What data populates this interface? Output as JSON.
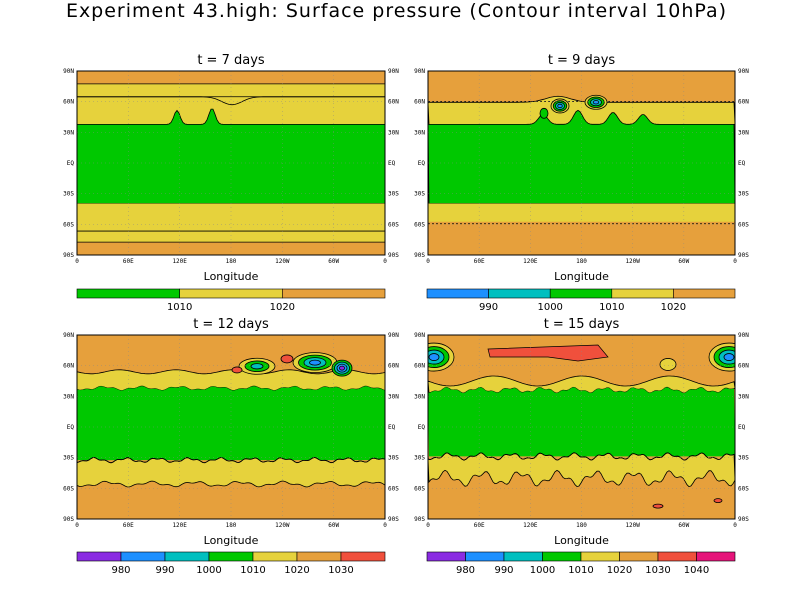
{
  "title": "Experiment 43.high: Surface pressure (Contour interval 10hPa)",
  "colors": {
    "c970": "#8a2be2",
    "c980": "#1e90ff",
    "c990": "#00bfbf",
    "c1000": "#00c800",
    "c1010": "#e6d23c",
    "c1020": "#e6a03c",
    "c1030": "#f0503c",
    "c1040": "#e6147a"
  },
  "chart_data": [
    {
      "type": "contour",
      "panel": "t7",
      "title": "t = 7 days",
      "xlabel": "Longitude",
      "xticks": [
        "0",
        "60E",
        "120E",
        "180",
        "120W",
        "60W",
        "0"
      ],
      "yticks_left": [
        "90N",
        "60N",
        "30N",
        "EQ",
        "30S",
        "60S",
        "90S"
      ],
      "yticks_right": [
        "90N",
        "60N",
        "30N",
        "EQ",
        "30S",
        "60S",
        "90S"
      ],
      "ylim": [
        -90,
        90
      ],
      "colorbar": {
        "colors": [
          "#00c800",
          "#e6d23c",
          "#e6a03c"
        ],
        "labels": [
          "1010",
          "1020"
        ]
      },
      "bands": [
        {
          "lat": [
            38,
            54
          ],
          "level": "1010-1020"
        },
        {
          "lat": [
            54,
            72
          ],
          "level": "1010-1020"
        },
        {
          "lat": [
            72,
            90
          ],
          "level": "1010-1020"
        },
        {
          "lat": [
            -40,
            38
          ],
          "level": "1000-1010"
        },
        {
          "lat": [
            -90,
            -40
          ],
          "level": "1010-1020"
        }
      ]
    },
    {
      "type": "contour",
      "panel": "t9",
      "title": "t = 9 days",
      "xlabel": "Longitude",
      "xticks": [
        "0",
        "60E",
        "120E",
        "180",
        "120W",
        "60W",
        "0"
      ],
      "yticks_left": [
        "90N",
        "60N",
        "30N",
        "EQ",
        "30S",
        "60S",
        "90S"
      ],
      "yticks_right": [
        "90N",
        "60N",
        "30N",
        "EQ",
        "30S",
        "60S",
        "90S"
      ],
      "ylim": [
        -90,
        90
      ],
      "colorbar": {
        "colors": [
          "#1e90ff",
          "#00bfbf",
          "#00c800",
          "#e6d23c",
          "#e6a03c"
        ],
        "labels": [
          "990",
          "1000",
          "1010",
          "1020"
        ]
      },
      "lows": [
        {
          "lon": 132,
          "lat": 57
        },
        {
          "lon": 163,
          "lat": 59
        }
      ]
    },
    {
      "type": "contour",
      "panel": "t12",
      "title": "t = 12 days",
      "xlabel": "Longitude",
      "xticks": [
        "0",
        "60E",
        "120E",
        "180",
        "120W",
        "60W",
        "0"
      ],
      "yticks_left": [
        "90N",
        "60N",
        "30N",
        "EQ",
        "30S",
        "60S",
        "90S"
      ],
      "yticks_right": [
        "90N",
        "60N",
        "30N",
        "EQ",
        "30S",
        "60S",
        "90S"
      ],
      "ylim": [
        -90,
        90
      ],
      "colorbar": {
        "colors": [
          "#8a2be2",
          "#1e90ff",
          "#00bfbf",
          "#00c800",
          "#e6d23c",
          "#e6a03c",
          "#f0503c"
        ],
        "labels": [
          "980",
          "990",
          "1000",
          "1010",
          "1020",
          "1030"
        ]
      },
      "lows": [
        {
          "lon": 175,
          "lat": 60
        },
        {
          "lon": 245,
          "lat": 62
        },
        {
          "lon": 303,
          "lat": 60
        }
      ]
    },
    {
      "type": "contour",
      "panel": "t15",
      "title": "t = 15 days",
      "xlabel": "Longitude",
      "xticks": [
        "0",
        "60E",
        "120E",
        "180",
        "120W",
        "60W",
        "0"
      ],
      "yticks_left": [
        "90N",
        "60N",
        "30N",
        "EQ",
        "30S",
        "60S",
        "90S"
      ],
      "yticks_right": [
        "90N",
        "60N",
        "30N",
        "EQ",
        "30S",
        "60S",
        "90S"
      ],
      "ylim": [
        -90,
        90
      ],
      "colorbar": {
        "colors": [
          "#8a2be2",
          "#1e90ff",
          "#00bfbf",
          "#00c800",
          "#e6d23c",
          "#e6a03c",
          "#f0503c",
          "#e6147a"
        ],
        "labels": [
          "980",
          "990",
          "1000",
          "1010",
          "1020",
          "1030",
          "1040"
        ]
      },
      "lows": [
        {
          "lon": 5,
          "lat": 63
        },
        {
          "lon": 350,
          "lat": 63
        }
      ],
      "highs": [
        {
          "lon": 130,
          "lat": 70
        }
      ]
    }
  ]
}
